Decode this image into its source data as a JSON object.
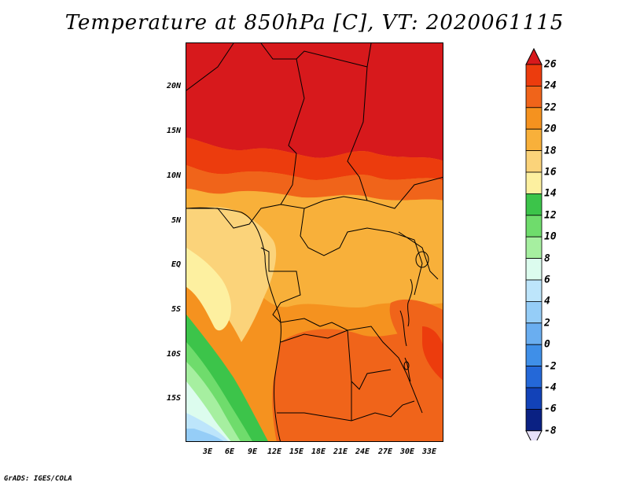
{
  "title": "Temperature at 850hPa [C], VT: 2020061115",
  "credit": "GrADS: IGES/COLA",
  "lat_labels": [
    "20N",
    "15N",
    "10N",
    "5N",
    "EQ",
    "5S",
    "10S",
    "15S"
  ],
  "lon_labels": [
    "3E",
    "6E",
    "9E",
    "12E",
    "15E",
    "18E",
    "21E",
    "24E",
    "27E",
    "30E",
    "33E"
  ],
  "colorbar": {
    "labels": [
      "26",
      "24",
      "22",
      "20",
      "18",
      "16",
      "14",
      "12",
      "10",
      "8",
      "6",
      "4",
      "2",
      "0",
      "-2",
      "-4",
      "-6",
      "-8"
    ],
    "colors": [
      "#d7191c",
      "#ec3c0d",
      "#f0641a",
      "#f5921f",
      "#f8b03a",
      "#fbd37a",
      "#fdf0a0",
      "#3cc44a",
      "#6fdc6c",
      "#a6efa0",
      "#dcfcee",
      "#bde5fb",
      "#95cdf7",
      "#6aaef0",
      "#3f8fe8",
      "#2468d8",
      "#1242b8",
      "#0a2183",
      "#0b106b"
    ],
    "under_color": "#e6e0f8"
  }
}
